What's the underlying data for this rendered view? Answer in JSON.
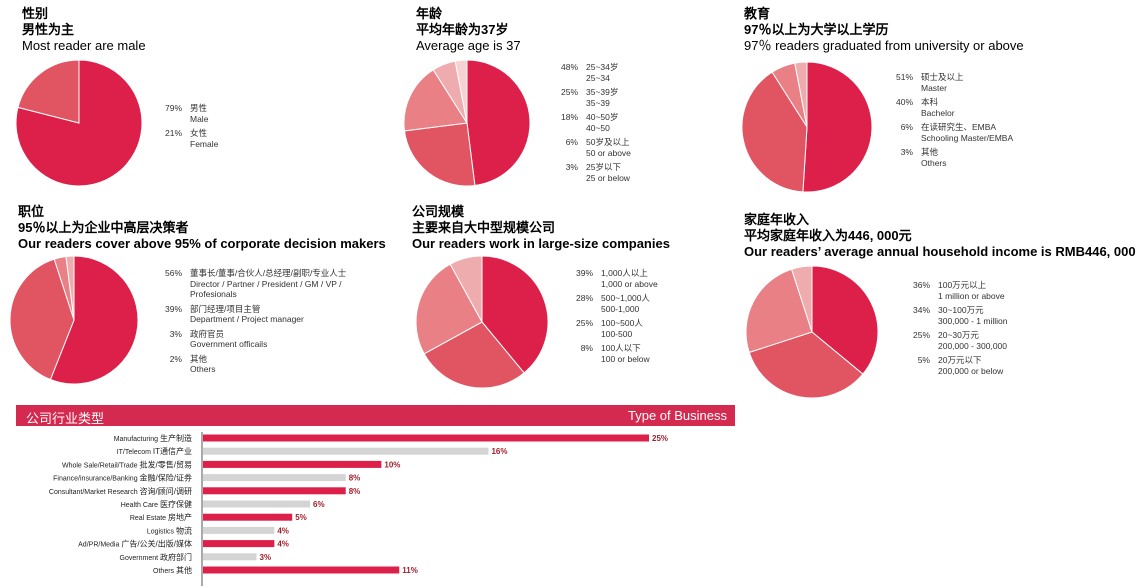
{
  "palette": [
    "#dd2049",
    "#e15462",
    "#e98086",
    "#efacae",
    "#f6d2d3"
  ],
  "sections": [
    {
      "id": "gender",
      "title_zh": "性别",
      "subtitle_zh": "男性为主",
      "subtitle_en": "Most reader are male",
      "chart_data": {
        "type": "pie",
        "slices": [
          {
            "pct": "79%",
            "value": 79,
            "zh": "男性",
            "en": "Male",
            "color": "#dd2049"
          },
          {
            "pct": "21%",
            "value": 21,
            "zh": "女性",
            "en": "Female",
            "color": "#e15462"
          }
        ]
      }
    },
    {
      "id": "age",
      "title_zh": "年龄",
      "subtitle_zh": "平均年龄为37岁",
      "subtitle_en": "Average  age is 37",
      "chart_data": {
        "type": "pie",
        "slices": [
          {
            "pct": "48%",
            "value": 48,
            "zh": "25~34岁",
            "en": "25~34",
            "color": "#dd2049"
          },
          {
            "pct": "25%",
            "value": 25,
            "zh": "35~39岁",
            "en": "35~39",
            "color": "#e15462"
          },
          {
            "pct": "18%",
            "value": 18,
            "zh": "40~50岁",
            "en": "40~50",
            "color": "#e98086"
          },
          {
            "pct": "6%",
            "value": 6,
            "zh": "50岁及以上",
            "en": "50 or above",
            "color": "#efacae"
          },
          {
            "pct": "3%",
            "value": 3,
            "zh": "25岁以下",
            "en": "25 or below",
            "color": "#f6d2d3"
          }
        ]
      }
    },
    {
      "id": "education",
      "title_zh": "教育",
      "subtitle_zh": "97％以上为大学以上学历",
      "subtitle_en": "97％ readers graduated from university or above",
      "chart_data": {
        "type": "pie",
        "slices": [
          {
            "pct": "51%",
            "value": 51,
            "zh": "硕士及以上",
            "en": "Master",
            "color": "#dd2049"
          },
          {
            "pct": "40%",
            "value": 40,
            "zh": "本科",
            "en": "Bachelor",
            "color": "#e15462"
          },
          {
            "pct": "6%",
            "value": 6,
            "zh": "在读研究生、EMBA",
            "en": "Schooling Master/EMBA",
            "color": "#e98086"
          },
          {
            "pct": "3%",
            "value": 3,
            "zh": "其他",
            "en": "Others",
            "color": "#efacae"
          }
        ]
      }
    },
    {
      "id": "position",
      "title_zh": "职位",
      "subtitle_zh": "95％以上为企业中高层决策者",
      "subtitle_en": "Our readers cover above 95% of  corporate decision makers",
      "chart_data": {
        "type": "pie",
        "slices": [
          {
            "pct": "56%",
            "value": 56,
            "zh": "董事长/董事/合伙人/总经理/副职/专业人士",
            "en": "Director / Partner / President / GM / VP / Profesionals",
            "color": "#dd2049"
          },
          {
            "pct": "39%",
            "value": 39,
            "zh": "部门经理/项目主管",
            "en": "Department / Project manager",
            "color": "#e15462"
          },
          {
            "pct": "3%",
            "value": 3,
            "zh": "政府官员",
            "en": "Government officails",
            "color": "#e98086"
          },
          {
            "pct": "2%",
            "value": 2,
            "zh": "其他",
            "en": "Others",
            "color": "#efacae"
          }
        ]
      }
    },
    {
      "id": "company",
      "title_zh": "公司规模",
      "subtitle_zh": "主要来自大中型规模公司",
      "subtitle_en": "Our readers work in large-size companies",
      "chart_data": {
        "type": "pie",
        "slices": [
          {
            "pct": "39%",
            "value": 39,
            "zh": "1,000人以上",
            "en": "1,000 or above",
            "color": "#dd2049"
          },
          {
            "pct": "28%",
            "value": 28,
            "zh": "500~1,000人",
            "en": "500-1,000",
            "color": "#e15462"
          },
          {
            "pct": "25%",
            "value": 25,
            "zh": "100~500人",
            "en": "100-500",
            "color": "#e98086"
          },
          {
            "pct": "8%",
            "value": 8,
            "zh": "100人以下",
            "en": "100 or below",
            "color": "#efacae"
          }
        ]
      }
    },
    {
      "id": "income",
      "title_zh": "家庭年收入",
      "subtitle_zh": "平均家庭年收入为446, 000元",
      "subtitle_en": "Our readers’ average annual household income is RMB446, 000",
      "chart_data": {
        "type": "pie",
        "slices": [
          {
            "pct": "36%",
            "value": 36,
            "zh": "100万元以上",
            "en": "1 million or above",
            "color": "#dd2049"
          },
          {
            "pct": "34%",
            "value": 34,
            "zh": "30~100万元",
            "en": "300,000 - 1 million",
            "color": "#e15462"
          },
          {
            "pct": "25%",
            "value": 25,
            "zh": "20~30万元",
            "en": "200,000 - 300,000",
            "color": "#e98086"
          },
          {
            "pct": "5%",
            "value": 5,
            "zh": "20万元以下",
            "en": "200,000 or below",
            "color": "#efacae"
          }
        ]
      }
    }
  ],
  "business": {
    "title_zh": "公司行业类型",
    "title_en": "Type of Business",
    "chart_data": {
      "type": "bar",
      "orientation": "horizontal",
      "xlim": [
        0,
        25
      ],
      "red": "#dd2049",
      "grey": "#d4d4d4",
      "label_color": "#a01f2b",
      "categories": [
        {
          "en": "Manufacturing",
          "zh": "生产制造",
          "value": 25,
          "label": "25%",
          "color": "red"
        },
        {
          "en": "IT/Telecom",
          "zh": "IT通信产业",
          "value": 16,
          "label": "16%",
          "color": "grey"
        },
        {
          "en": "Whole Sale/Retail/Trade",
          "zh": "批发/零售/贸易",
          "value": 10,
          "label": "10%",
          "color": "red"
        },
        {
          "en": "Finance/insurance/Banking",
          "zh": "金融/保险/证券",
          "value": 8,
          "label": "8%",
          "color": "grey"
        },
        {
          "en": "Consultant/Market Research",
          "zh": "咨询/顾问/调研",
          "value": 8,
          "label": "8%",
          "color": "red"
        },
        {
          "en": "Health Care",
          "zh": "医疗保健",
          "value": 6,
          "label": "6%",
          "color": "grey"
        },
        {
          "en": "Real Estate",
          "zh": "房地产",
          "value": 5,
          "label": "5%",
          "color": "red"
        },
        {
          "en": "Logistics",
          "zh": "物流",
          "value": 4,
          "label": "4%",
          "color": "grey"
        },
        {
          "en": "Ad/PR/Media",
          "zh": "广告/公关/出版/媒体",
          "value": 4,
          "label": "4%",
          "color": "red"
        },
        {
          "en": "Government",
          "zh": "政府部门",
          "value": 3,
          "label": "3%",
          "color": "grey"
        },
        {
          "en": "Others",
          "zh": "其他",
          "value": 11,
          "label": "11%",
          "color": "red"
        }
      ]
    }
  }
}
